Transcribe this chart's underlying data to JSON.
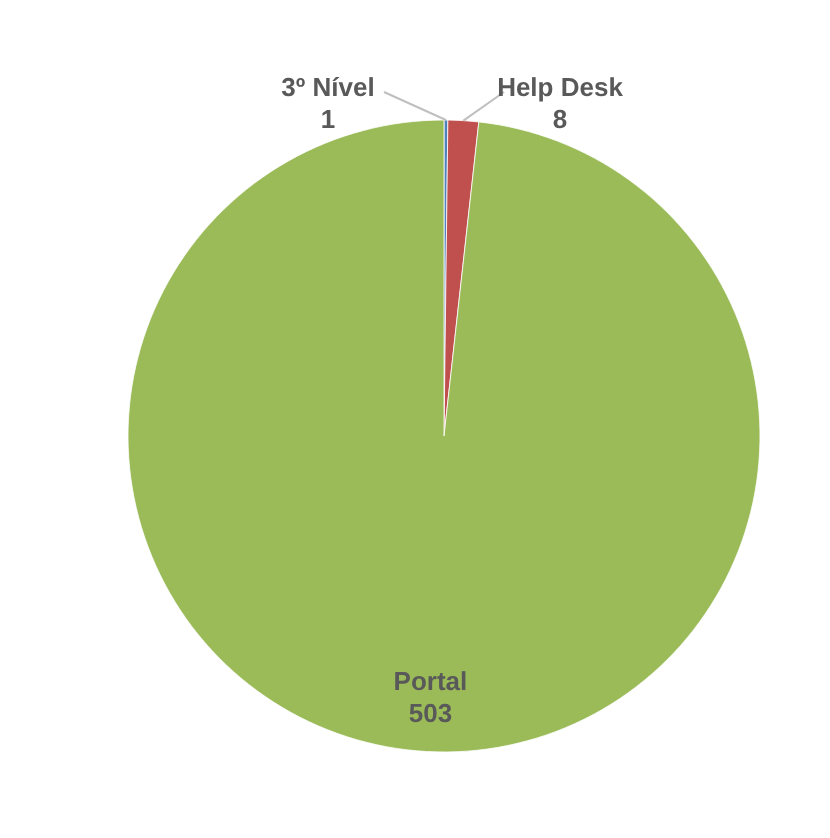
{
  "chart_data": {
    "type": "pie",
    "categories": [
      "3º Nível",
      "Help Desk",
      "Portal"
    ],
    "values": [
      1,
      8,
      503
    ],
    "colors": [
      "#4f81bd",
      "#c0504d",
      "#9bbb59"
    ],
    "data_labels": true
  }
}
